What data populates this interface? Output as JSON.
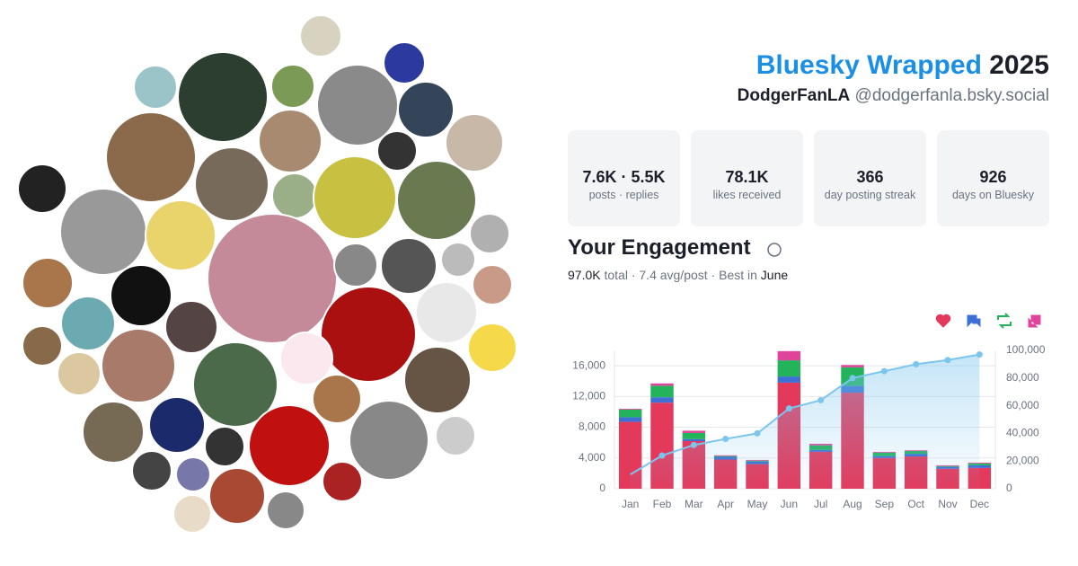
{
  "header": {
    "title": "Bluesky Wrapped",
    "year": "2025",
    "display_name": "DodgerFanLA",
    "handle": "@dodgerfanla.bsky.social"
  },
  "stats": [
    {
      "value": "7.6K · 5.5K",
      "label": "posts · replies"
    },
    {
      "value": "78.1K",
      "label": "likes received"
    },
    {
      "value": "366",
      "label": "day posting streak"
    },
    {
      "value": "926",
      "label": "days on Bluesky"
    }
  ],
  "engagement": {
    "title": "Your Engagement",
    "total": "97.0K",
    "summary": "total · 7.4 avg/post · Best in",
    "best_month": "June"
  },
  "chart_data": {
    "type": "bar",
    "stacked": true,
    "categories": [
      "Jan",
      "Feb",
      "Mar",
      "Apr",
      "May",
      "Jun",
      "Jul",
      "Aug",
      "Sep",
      "Oct",
      "Nov",
      "Dec"
    ],
    "series": [
      {
        "color": "#e33a5c",
        "values": [
          8700,
          11200,
          6200,
          3800,
          3200,
          13800,
          4800,
          12500,
          4000,
          4200,
          2600,
          2700
        ]
      },
      {
        "color": "#3d6fd6",
        "values": [
          600,
          700,
          250,
          350,
          350,
          800,
          250,
          900,
          250,
          350,
          250,
          350
        ]
      },
      {
        "color": "#23b35b",
        "values": [
          1000,
          1500,
          800,
          100,
          100,
          2100,
          600,
          2400,
          450,
          350,
          100,
          250
        ]
      },
      {
        "color": "#e0449a",
        "values": [
          100,
          300,
          300,
          100,
          100,
          1200,
          200,
          300,
          100,
          100,
          100,
          100
        ]
      },
      {
        "type": "line",
        "axis": "y2",
        "color": "#7cc6ee",
        "values": [
          10300,
          24000,
          31600,
          36000,
          40000,
          58000,
          64000,
          80000,
          85000,
          90000,
          93000,
          97000
        ]
      }
    ],
    "ylim": [
      0,
      18000
    ],
    "yticks": [
      0,
      {
        "value": 4000,
        "label": "4,000"
      },
      {
        "value": 8000,
        "label": "8,000"
      },
      {
        "value": 12000,
        "label": "12,000"
      },
      {
        "value": 16000,
        "label": "16,000"
      }
    ],
    "y2lim": [
      0,
      100000
    ],
    "y2ticks": [
      0,
      {
        "value": 20000,
        "label": "20,000"
      },
      {
        "value": 40000,
        "label": "40,000"
      },
      {
        "value": 60000,
        "label": "60,000"
      },
      {
        "value": 80000,
        "label": "80,000"
      },
      {
        "value": 100000,
        "label": "100,000"
      }
    ],
    "grid": true
  }
}
